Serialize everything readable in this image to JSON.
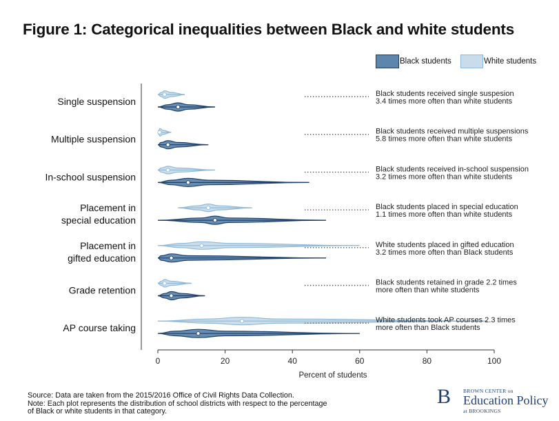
{
  "title": "Figure 1: Categorical inequalities between Black and white students",
  "legend": [
    {
      "label": "Black students",
      "color": "#1f4e79",
      "fill": "#6c8fb3"
    },
    {
      "label": "White students",
      "color": "#8fb9d6",
      "fill": "#c8dcec"
    }
  ],
  "chart_data": {
    "type": "violin",
    "xlabel": "Percent of students",
    "xlim": [
      0,
      100
    ],
    "xticks": [
      "0",
      "20",
      "40",
      "60",
      "80",
      "100"
    ],
    "categories": [
      {
        "label": [
          "Single suspension"
        ],
        "white": {
          "median": 2,
          "q1": 1,
          "q3": 4,
          "min": 0,
          "max": 8
        },
        "black": {
          "median": 6,
          "q1": 3,
          "q3": 9,
          "min": 0,
          "max": 17
        },
        "annotation": [
          "Black students received single suspesion",
          "3.4 times more often than white students"
        ]
      },
      {
        "label": [
          "Multiple suspension"
        ],
        "white": {
          "median": 0.5,
          "q1": 0,
          "q3": 1.5,
          "min": 0,
          "max": 4
        },
        "black": {
          "median": 3,
          "q1": 1,
          "q3": 6,
          "min": 0,
          "max": 15
        },
        "annotation": [
          "Black students received multiple suspensions",
          "5.8 times more often than white students"
        ]
      },
      {
        "label": [
          "In-school suspension"
        ],
        "white": {
          "median": 3,
          "q1": 1,
          "q3": 6,
          "min": 0,
          "max": 17
        },
        "black": {
          "median": 9,
          "q1": 4,
          "q3": 15,
          "min": 0,
          "max": 45
        },
        "annotation": [
          "Black students received in-school suspension",
          "3.2 times more often than white students"
        ]
      },
      {
        "label": [
          "Placement in",
          "special education"
        ],
        "white": {
          "median": 15,
          "q1": 12,
          "q3": 18,
          "min": 6,
          "max": 28
        },
        "black": {
          "median": 17,
          "q1": 13,
          "q3": 21,
          "min": 0,
          "max": 50
        },
        "annotation": [
          "Black students placed in special education",
          "1.1 times more often than white students"
        ]
      },
      {
        "label": [
          "Placement in",
          "gifted education"
        ],
        "white": {
          "median": 13,
          "q1": 7,
          "q3": 22,
          "min": 0,
          "max": 60
        },
        "black": {
          "median": 4,
          "q1": 1,
          "q3": 9,
          "min": 0,
          "max": 50
        },
        "annotation": [
          "White students placed in gifted education",
          "3.2 times more often than Black students"
        ]
      },
      {
        "label": [
          "Grade retention"
        ],
        "white": {
          "median": 2,
          "q1": 1,
          "q3": 4,
          "min": 0,
          "max": 10
        },
        "black": {
          "median": 4,
          "q1": 2,
          "q3": 7,
          "min": 0,
          "max": 14
        },
        "annotation": [
          "Black students retained in grade 2.2 times",
          "more often than white students"
        ]
      },
      {
        "label": [
          "AP course taking"
        ],
        "white": {
          "median": 25,
          "q1": 15,
          "q3": 36,
          "min": 0,
          "max": 98
        },
        "black": {
          "median": 12,
          "q1": 5,
          "q3": 20,
          "min": 0,
          "max": 60
        },
        "annotation": [
          "White students took AP courses 2.3 times",
          "more often than Black students"
        ]
      }
    ]
  },
  "source": [
    "Source: Data are taken from the 2015/2016 Office of Civil Rights Data Collection.",
    "Note: Each plot represents the distribution of school districts with respect to the percentage",
    "of Black or white students in that category."
  ],
  "brand": {
    "letter": "B",
    "top": "BROWN CENTER on",
    "main": "Education Policy",
    "bottom": "at BROOKINGS"
  }
}
